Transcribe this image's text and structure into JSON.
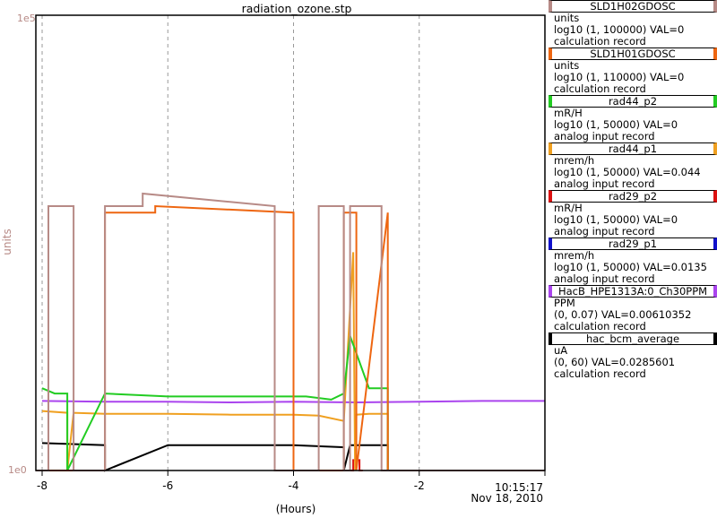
{
  "chart_data": {
    "type": "line",
    "title": "radiation_ozone.stp",
    "xlabel": "(Hours)",
    "ylabel": "units",
    "y_scale": "log",
    "ylim": [
      1,
      100000
    ],
    "y_tick_labels": [
      "1e5",
      "1e0"
    ],
    "xlim": [
      -8.1,
      -0.0
    ],
    "x_ticks": [
      -8,
      -6,
      -4,
      -2
    ],
    "x_tick_labels": [
      "-8",
      "-6",
      "-4",
      "-2"
    ],
    "end_time": "10:15:17",
    "end_date": "Nov 18, 2010",
    "grid": true,
    "series": [
      {
        "name": "SLD1H02GDOSC",
        "unit": "units",
        "scale": "log10 (1, 100000) VAL=0",
        "record": "calculation record",
        "color": "#b78a86",
        "x": [
          -8.1,
          -7.9,
          -7.9,
          -7.5,
          -7.5,
          -7.0,
          -7.0,
          -6.4,
          -6.4,
          -4.3,
          -4.3,
          -3.6,
          -3.6,
          -3.2,
          -3.2,
          -3.1,
          -3.1,
          -2.6,
          -2.6,
          -2.5,
          -2.5,
          -0.0
        ],
        "y": [
          1,
          1,
          800,
          800,
          1,
          1,
          800,
          800,
          1100,
          800,
          1,
          1,
          800,
          800,
          1,
          1,
          800,
          800,
          1,
          1,
          1,
          1
        ]
      },
      {
        "name": "SLD1H01GDOSC",
        "unit": "units",
        "scale": "log10 (1, 110000) VAL=0",
        "record": "calculation record",
        "color": "#ee6611",
        "x": [
          -8.1,
          -7.0,
          -7.0,
          -6.2,
          -6.2,
          -4.0,
          -4.0,
          -3.2,
          -3.2,
          -3.0,
          -3.0,
          -2.5,
          -2.5,
          -0.0
        ],
        "y": [
          1,
          1,
          680,
          680,
          800,
          680,
          1,
          1,
          680,
          680,
          1,
          680,
          1,
          1
        ]
      },
      {
        "name": "rad44_p2",
        "unit": "mR/H",
        "scale": "log10 (1, 50000) VAL=0",
        "record": "analog input record",
        "color": "#22cc22",
        "x": [
          -8.0,
          -7.8,
          -7.6,
          -7.6,
          -7.0,
          -6.0,
          -5.0,
          -4.2,
          -3.8,
          -3.4,
          -3.2,
          -3.1,
          -2.8,
          -2.5,
          -2.5,
          -0.0
        ],
        "y": [
          8,
          7,
          7,
          1,
          7,
          6.5,
          6.5,
          6.5,
          6.5,
          6,
          7,
          30,
          8,
          8,
          1,
          1
        ]
      },
      {
        "name": "rad44_p1",
        "unit": "mrem/h",
        "scale": "log10 (1, 50000) VAL=0.044",
        "record": "analog input record",
        "color": "#f0a020",
        "x": [
          -8.0,
          -7.6,
          -7.6,
          -7.5,
          -7.0,
          -6.0,
          -5.0,
          -4.0,
          -3.6,
          -3.2,
          -3.05,
          -3.02,
          -3.0,
          -2.8,
          -2.5,
          -2.5,
          -0.0
        ],
        "y": [
          4.5,
          4.3,
          1,
          4.3,
          4.2,
          4.2,
          4.1,
          4.1,
          4.0,
          3.5,
          250,
          1,
          4.1,
          4.2,
          4.2,
          1,
          1
        ]
      },
      {
        "name": "rad29_p2",
        "unit": "mR/H",
        "scale": "log10 (1, 50000) VAL=0",
        "record": "analog input record",
        "color": "#dd1111",
        "x": [
          -3.2,
          -3.05,
          -3.05,
          -2.95,
          -2.95,
          -2.9
        ],
        "y": [
          1,
          1,
          1.3,
          1.3,
          1,
          1
        ]
      },
      {
        "name": "rad29_p1",
        "unit": "mrem/h",
        "scale": "log10 (1, 50000) VAL=0.0135",
        "record": "analog input record",
        "color": "#1111cc",
        "x": [],
        "y": []
      },
      {
        "name": "HacB_HPE1313A:0_Ch30PPM",
        "unit": "PPM",
        "scale": "(0, 0.07) VAL=0.00610352",
        "record": "calculation record",
        "color": "#aa44ee",
        "x": [
          -8.0,
          -7.0,
          -6.0,
          -5.0,
          -4.0,
          -3.0,
          -2.0,
          -1.0,
          -0.0
        ],
        "y": [
          5.8,
          5.7,
          5.7,
          5.6,
          5.7,
          5.6,
          5.7,
          5.8,
          5.8
        ]
      },
      {
        "name": "hac_bcm_average",
        "unit": "uA",
        "scale": "(0, 60) VAL=0.0285601",
        "record": "calculation record",
        "color": "#000000",
        "x": [
          -8.0,
          -7.0,
          -7.0,
          -6.0,
          -5.0,
          -4.0,
          -3.2,
          -3.2,
          -3.1,
          -2.5,
          -2.5,
          -0.0
        ],
        "y": [
          2.0,
          1.9,
          1.0,
          1.9,
          1.9,
          1.9,
          1.8,
          1.0,
          1.9,
          1.9,
          1.0,
          1.0
        ]
      }
    ]
  }
}
